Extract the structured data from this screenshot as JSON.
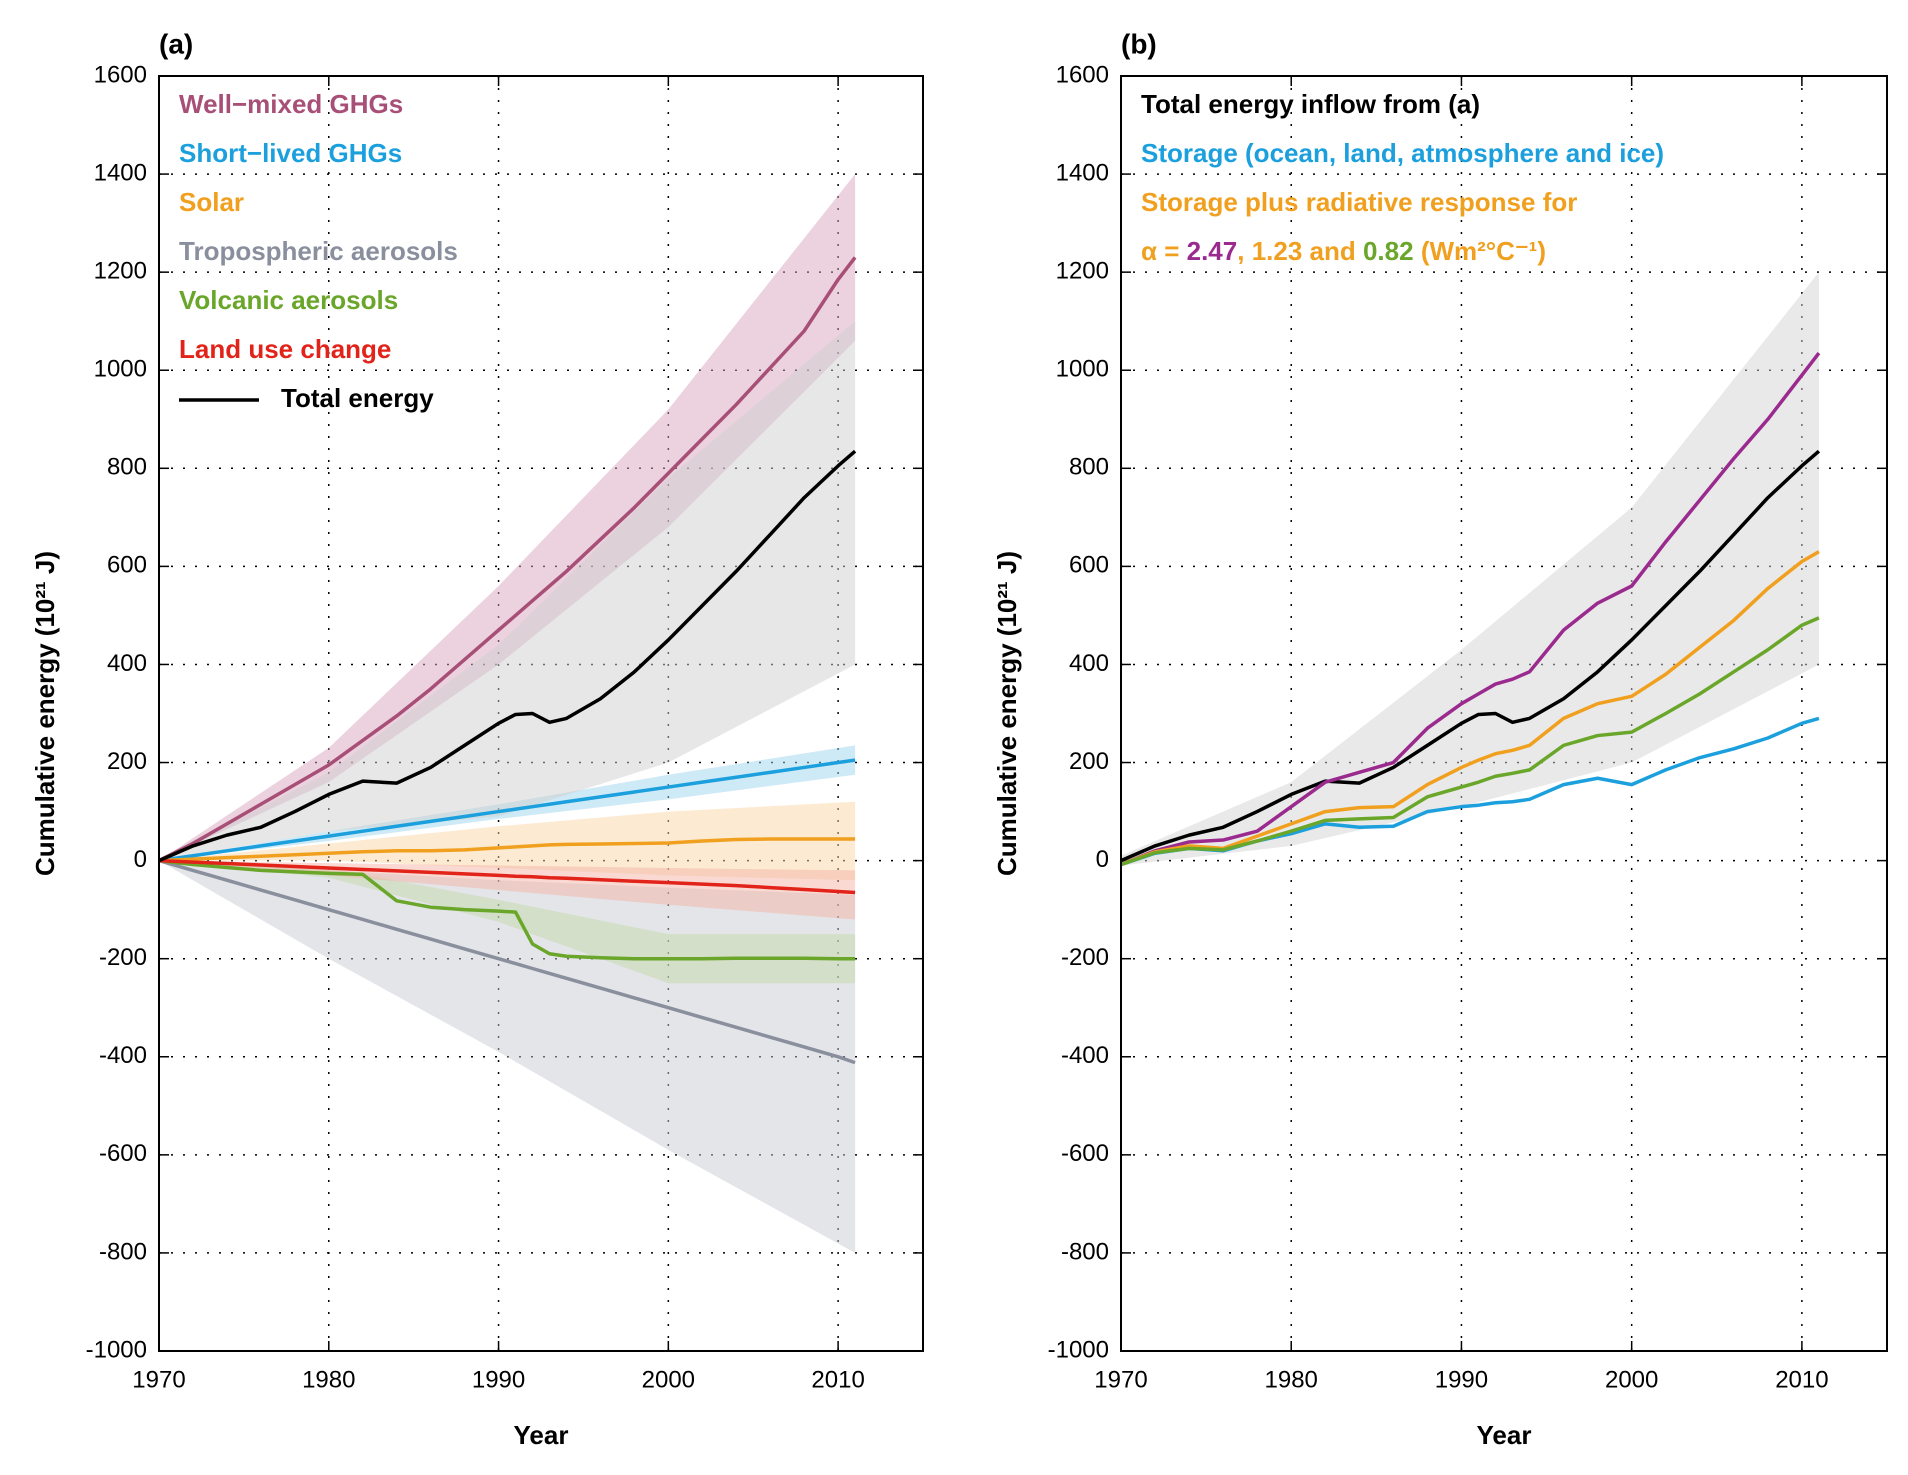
{
  "chart_data": [
    {
      "type": "line",
      "panel_label": "(a)",
      "xlabel": "Year",
      "ylabel": "Cumulative energy (10²¹ J)",
      "xlim": [
        1970,
        2015
      ],
      "xticks": [
        1970,
        1980,
        1990,
        2000,
        2010
      ],
      "ylim": [
        -1000,
        1600
      ],
      "yticks": [
        -1000,
        -800,
        -600,
        -400,
        -200,
        0,
        200,
        400,
        600,
        800,
        1000,
        1200,
        1400,
        1600
      ],
      "grid": true,
      "x": [
        1970,
        1972,
        1974,
        1976,
        1978,
        1980,
        1982,
        1984,
        1986,
        1988,
        1990,
        1991,
        1992,
        1993,
        1994,
        1996,
        1998,
        2000,
        2002,
        2004,
        2006,
        2008,
        2010,
        2011
      ],
      "band_x": [
        1970,
        1980,
        1990,
        2000,
        2011
      ],
      "series": [
        {
          "name": "Well−mixed GHGs",
          "color": "#a84f77",
          "band_color": "#d8a6bd",
          "values": [
            0,
            35,
            75,
            115,
            155,
            195,
            245,
            295,
            350,
            410,
            470,
            500,
            530,
            560,
            590,
            655,
            720,
            790,
            860,
            930,
            1005,
            1080,
            1185,
            1230
          ],
          "band_lower": [
            0,
            160,
            400,
            680,
            1060
          ],
          "band_upper": [
            0,
            230,
            560,
            920,
            1400
          ]
        },
        {
          "name": "Short−lived GHGs",
          "color": "#1ca0dd",
          "band_color": "#9fd6f0",
          "values": [
            0,
            10,
            20,
            30,
            40,
            50,
            60,
            70,
            80,
            90,
            100,
            105,
            110,
            115,
            120,
            130,
            140,
            150,
            160,
            170,
            180,
            190,
            200,
            205
          ],
          "band_lower": [
            0,
            40,
            85,
            125,
            175
          ],
          "band_upper": [
            0,
            60,
            115,
            175,
            235
          ]
        },
        {
          "name": "Solar",
          "color": "#f0a01e",
          "band_color": "#f9d7a5",
          "values": [
            0,
            3,
            6,
            9,
            12,
            15,
            18,
            20,
            20,
            22,
            26,
            28,
            30,
            32,
            33,
            34,
            35,
            36,
            40,
            43,
            44,
            44,
            44,
            44
          ],
          "band_lower": [
            0,
            0,
            -15,
            -30,
            -40
          ],
          "band_upper": [
            0,
            35,
            70,
            100,
            120
          ]
        },
        {
          "name": "Tropospheric aerosols",
          "color": "#8a8f9e",
          "band_color": "#c9cbd3",
          "values": [
            0,
            -20,
            -40,
            -60,
            -80,
            -100,
            -120,
            -140,
            -160,
            -180,
            -200,
            -210,
            -220,
            -230,
            -240,
            -260,
            -280,
            -300,
            -320,
            -340,
            -360,
            -380,
            -400,
            -412
          ],
          "band_lower": [
            0,
            -200,
            -390,
            -590,
            -800
          ],
          "band_upper": [
            0,
            -20,
            -40,
            -55,
            -70
          ]
        },
        {
          "name": "Volcanic aerosols",
          "color": "#6aa62a",
          "band_color": "#c2d9a9",
          "values": [
            0,
            -8,
            -14,
            -20,
            -23,
            -26,
            -28,
            -82,
            -95,
            -100,
            -103,
            -105,
            -170,
            -190,
            -195,
            -198,
            -200,
            -200,
            -200,
            -199,
            -199,
            -199,
            -200,
            -200
          ],
          "band_lower": [
            0,
            -35,
            -125,
            -250,
            -250
          ],
          "band_upper": [
            0,
            -15,
            -80,
            -150,
            -150
          ]
        },
        {
          "name": "Land use change",
          "color": "#e2231a",
          "band_color": "#f3b3a6",
          "values": [
            0,
            -3,
            -6,
            -9,
            -12,
            -15,
            -18,
            -21,
            -24,
            -27,
            -30,
            -32,
            -33,
            -35,
            -36,
            -39,
            -42,
            -45,
            -48,
            -51,
            -55,
            -59,
            -63,
            -65
          ],
          "band_lower": [
            0,
            -30,
            -60,
            -90,
            -120
          ],
          "band_upper": [
            0,
            -5,
            -10,
            -15,
            -20
          ]
        },
        {
          "name": "Total energy",
          "color": "#000000",
          "band_color": "#cfcfcf",
          "legend_line": true,
          "values": [
            0,
            30,
            52,
            68,
            100,
            135,
            162,
            158,
            190,
            235,
            280,
            298,
            300,
            282,
            290,
            330,
            385,
            450,
            520,
            590,
            665,
            740,
            805,
            835
          ],
          "band_lower": [
            0,
            60,
            90,
            200,
            400
          ],
          "band_upper": [
            0,
            180,
            440,
            780,
            1100
          ]
        }
      ]
    },
    {
      "type": "line",
      "panel_label": "(b)",
      "xlabel": "Year",
      "ylabel": "Cumulative energy (10²¹ J)",
      "xlim": [
        1970,
        2015
      ],
      "xticks": [
        1970,
        1980,
        1990,
        2000,
        2010
      ],
      "ylim": [
        -1000,
        1600
      ],
      "yticks": [
        -1000,
        -800,
        -600,
        -400,
        -200,
        0,
        200,
        400,
        600,
        800,
        1000,
        1200,
        1400,
        1600
      ],
      "grid": true,
      "x": [
        1970,
        1972,
        1974,
        1976,
        1978,
        1980,
        1982,
        1984,
        1986,
        1988,
        1990,
        1991,
        1992,
        1993,
        1994,
        1996,
        1998,
        2000,
        2002,
        2004,
        2006,
        2008,
        2010,
        2011
      ],
      "band_x": [
        1970,
        1980,
        1990,
        2000,
        2011
      ],
      "band_color": "#d4d4d4",
      "band_lower": [
        -10,
        30,
        110,
        200,
        400
      ],
      "band_upper": [
        10,
        160,
        430,
        720,
        1200
      ],
      "legend_note": "Storage plus radiative response for",
      "alpha_label": "α =",
      "separators": [
        ", ",
        " and "
      ],
      "unit_label": "(Wm²°C⁻¹)",
      "note_color": "#f0a01e",
      "series": [
        {
          "name": "Total energy inflow from (a)",
          "color": "#000000",
          "values": [
            0,
            30,
            52,
            68,
            100,
            135,
            162,
            158,
            190,
            235,
            280,
            298,
            300,
            282,
            290,
            330,
            385,
            450,
            520,
            590,
            665,
            740,
            805,
            835
          ]
        },
        {
          "name": "Storage (ocean, land, atmosphere and ice)",
          "color": "#1ca0dd",
          "values": [
            -8,
            15,
            25,
            20,
            40,
            55,
            75,
            68,
            70,
            100,
            110,
            113,
            118,
            120,
            125,
            155,
            168,
            155,
            185,
            210,
            228,
            250,
            280,
            290
          ]
        },
        {
          "name": "2.47",
          "color": "#9b2a8e",
          "values": [
            -8,
            20,
            38,
            42,
            60,
            110,
            160,
            180,
            200,
            270,
            320,
            340,
            360,
            370,
            385,
            470,
            525,
            560,
            650,
            735,
            820,
            900,
            990,
            1035
          ]
        },
        {
          "name": "1.23",
          "color": "#f0a01e",
          "values": [
            -8,
            18,
            30,
            25,
            50,
            75,
            100,
            108,
            110,
            155,
            190,
            205,
            218,
            225,
            235,
            290,
            320,
            335,
            380,
            435,
            490,
            555,
            610,
            630
          ]
        },
        {
          "name": "0.82",
          "color": "#6aa62a",
          "values": [
            -8,
            16,
            25,
            22,
            40,
            60,
            82,
            85,
            88,
            130,
            150,
            160,
            172,
            178,
            185,
            235,
            255,
            262,
            300,
            340,
            385,
            430,
            480,
            495
          ]
        }
      ]
    }
  ]
}
